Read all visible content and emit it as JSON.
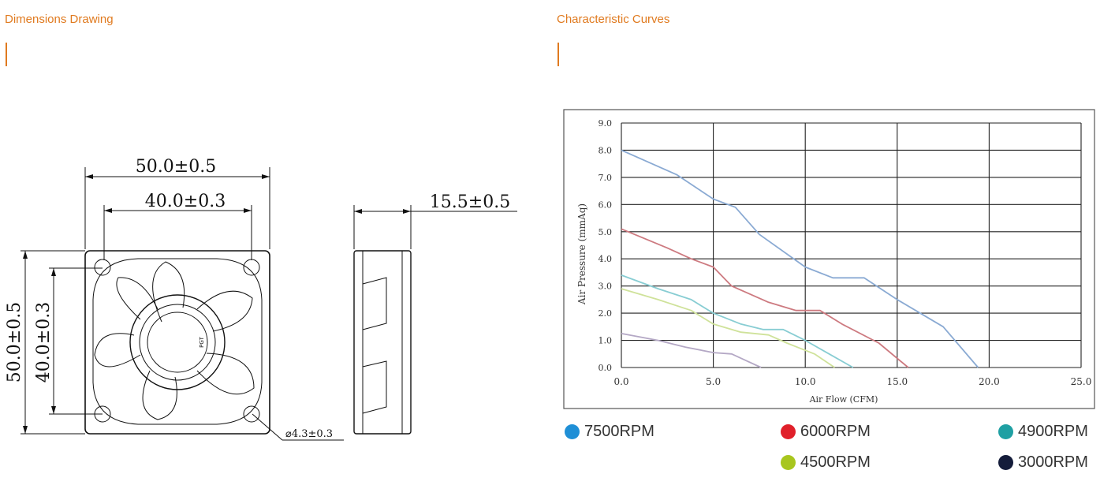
{
  "sections": {
    "dimensions_title": "Dimensions Drawing",
    "curves_title": "Characteristic Curves"
  },
  "drawing": {
    "width_outer": "50.0±0.5",
    "width_inner": "40.0±0.3",
    "depth": "15.5±0.5",
    "height_outer": "50.0±0.5",
    "height_inner": "40.0±0.3",
    "hole": "⌀4.3±0.3",
    "hub_mark": "PGT"
  },
  "legend": [
    {
      "label": "7500RPM",
      "color": "#1f8fd6"
    },
    {
      "label": "6000RPM",
      "color": "#e0202a"
    },
    {
      "label": "4900RPM",
      "color": "#1fa0a3"
    },
    {
      "label": "4500RPM",
      "color": "#a8c61e"
    },
    {
      "label": "3000RPM",
      "color": "#141c3a"
    }
  ],
  "chart_data": {
    "type": "line",
    "xlabel": "Air Flow (CFM)",
    "ylabel": "Air Pressure (mmAq)",
    "xlim": [
      0,
      25
    ],
    "ylim": [
      0,
      9
    ],
    "xticks": [
      "0.0",
      "5.0",
      "10.0",
      "15.0",
      "20.0",
      "25.0"
    ],
    "yticks": [
      "0.0",
      "1.0",
      "2.0",
      "3.0",
      "4.0",
      "5.0",
      "6.0",
      "7.0",
      "8.0",
      "9.0"
    ],
    "grid": true,
    "series": [
      {
        "name": "7500RPM",
        "color": "#8aaad3",
        "x": [
          0,
          3,
          5,
          6.2,
          7.5,
          10,
          11.5,
          13.2,
          15,
          17.5,
          19.4
        ],
        "y": [
          8.0,
          7.1,
          6.2,
          5.9,
          4.9,
          3.7,
          3.3,
          3.3,
          2.5,
          1.5,
          0.0
        ]
      },
      {
        "name": "6000RPM",
        "color": "#cd7a80",
        "x": [
          0,
          2.5,
          3.8,
          5,
          6,
          8,
          9.5,
          10.8,
          12,
          14,
          15.6
        ],
        "y": [
          5.1,
          4.4,
          4.0,
          3.7,
          3.0,
          2.4,
          2.1,
          2.1,
          1.6,
          0.9,
          0.0
        ]
      },
      {
        "name": "4900RPM",
        "color": "#88cdd3",
        "x": [
          0,
          2,
          3.8,
          5,
          6.5,
          7.7,
          8.8,
          10,
          11.3,
          12.6
        ],
        "y": [
          3.4,
          2.9,
          2.5,
          2.0,
          1.6,
          1.4,
          1.4,
          1.0,
          0.5,
          0.0
        ]
      },
      {
        "name": "4500RPM",
        "color": "#cfe29a",
        "x": [
          0,
          2,
          3.8,
          5,
          6.5,
          8,
          9,
          10.5,
          11.6
        ],
        "y": [
          2.9,
          2.5,
          2.1,
          1.6,
          1.3,
          1.2,
          0.9,
          0.5,
          0.0
        ]
      },
      {
        "name": "3000RPM",
        "color": "#b4a8c5",
        "x": [
          0,
          2,
          3.5,
          5,
          6,
          6.8,
          7.6
        ],
        "y": [
          1.25,
          1.0,
          0.75,
          0.55,
          0.5,
          0.25,
          0.0
        ]
      }
    ]
  }
}
